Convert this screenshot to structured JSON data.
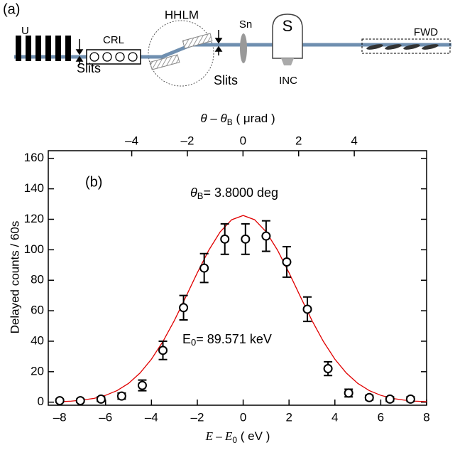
{
  "diagram": {
    "label": "(a)",
    "components": [
      "U",
      "CRL",
      "HHLM",
      "Slits",
      "Slits",
      "Sn",
      "S",
      "INC",
      "FWD"
    ]
  },
  "chart_data": {
    "type": "scatter",
    "label": "(b)",
    "x_label": {
      "text": "E – E",
      "sub": "0",
      "rest": " ( eV )"
    },
    "x2_label": {
      "text": "θ – θ",
      "sub": "B",
      "rest": " ( μrad )"
    },
    "y_label": "Delayed counts / 60s",
    "annotations": [
      {
        "text": "θ",
        "sub": "B",
        "rest": "= 3.8000 deg"
      },
      {
        "text": "E",
        "sub": "0",
        "rest": "= 89.571 keV"
      }
    ],
    "xlim": [
      -8.5,
      8
    ],
    "ylim": [
      -2,
      165
    ],
    "x2lim": [
      -7.0,
      6.6
    ],
    "xticks": [
      {
        "value": -8,
        "label": "–8"
      },
      {
        "value": -6,
        "label": "–6"
      },
      {
        "value": -4,
        "label": "–4"
      },
      {
        "value": -2,
        "label": "–2"
      },
      0,
      2,
      4,
      6,
      8
    ],
    "x2ticks": [
      {
        "value": -4,
        "label": "–4"
      },
      {
        "value": -2,
        "label": "–2"
      },
      0,
      2,
      4
    ],
    "yticks": [
      0,
      20,
      40,
      60,
      80,
      100,
      120,
      140,
      160
    ],
    "x": [
      -8,
      -7.1,
      -6.2,
      -5.3,
      -4.4,
      -3.5,
      -2.6,
      -1.7,
      -0.8,
      0.1,
      1.0,
      1.9,
      2.8,
      3.7,
      4.6,
      5.5,
      6.4,
      7.3
    ],
    "values": [
      1,
      1,
      2,
      4,
      11,
      34,
      62,
      88,
      107,
      107,
      109,
      92,
      61,
      22,
      6,
      3,
      2,
      2
    ],
    "errors": [
      1,
      1,
      1.5,
      2,
      3.5,
      6,
      8,
      9.5,
      10,
      10,
      10,
      10,
      8,
      4.5,
      2.5,
      1.5,
      1.5,
      1.5
    ],
    "color": "#000000",
    "fit": {
      "color": "#e00000",
      "x": [
        -8,
        -7.5,
        -7,
        -6.5,
        -6,
        -5.5,
        -5,
        -4.5,
        -4,
        -3.5,
        -3,
        -2.5,
        -2,
        -1.5,
        -1,
        -0.5,
        0,
        0.5,
        1,
        1.5,
        2,
        2.5,
        3,
        3.5,
        4,
        4.5,
        5,
        5.5,
        6,
        6.5,
        7,
        7.5,
        8
      ],
      "values": [
        0.3,
        0.7,
        1.4,
        2.5,
        4.5,
        7.6,
        12.3,
        19.1,
        28.2,
        39.8,
        53.6,
        69.1,
        84.9,
        99.7,
        111.8,
        119.7,
        122.5,
        119.7,
        111.8,
        99.7,
        84.9,
        69.1,
        53.6,
        39.8,
        28.2,
        19.1,
        12.3,
        7.6,
        4.5,
        2.5,
        1.4,
        0.7,
        0.3
      ]
    }
  }
}
